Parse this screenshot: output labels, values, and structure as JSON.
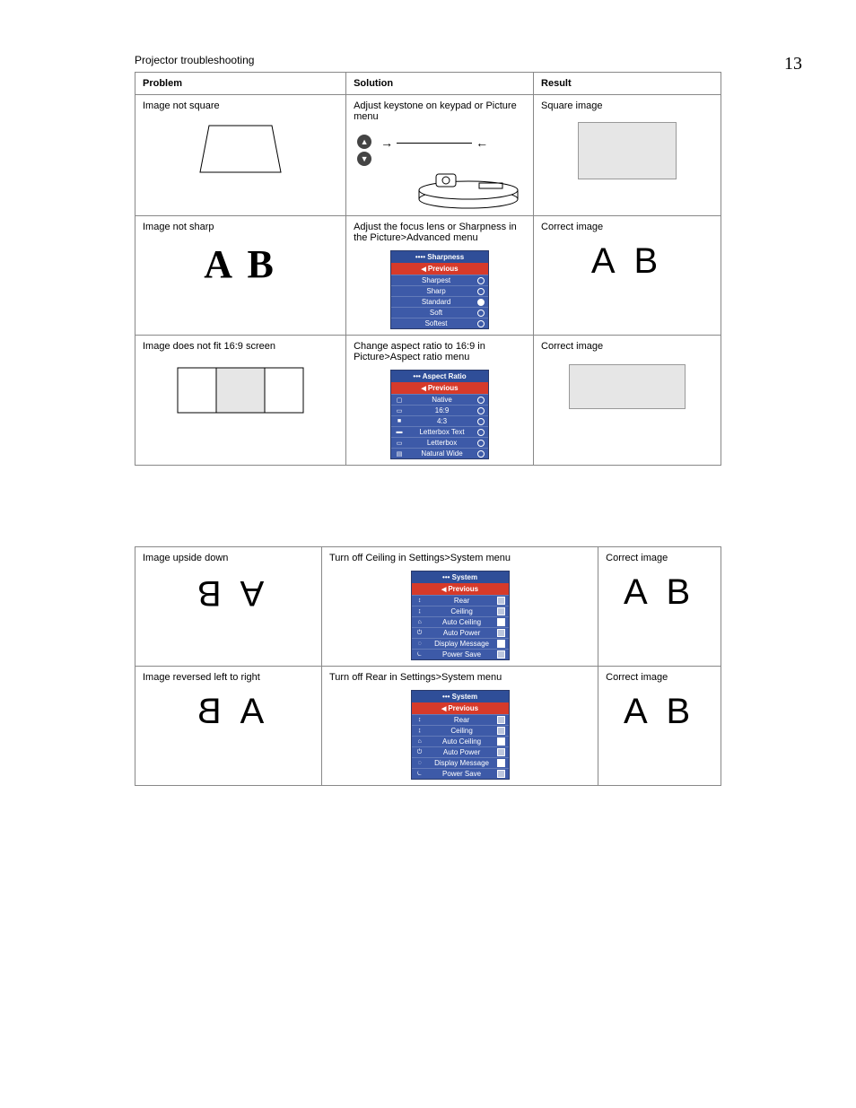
{
  "page_number": "13",
  "section_title": "Projector troubleshooting",
  "headers": {
    "problem": "Problem",
    "solution": "Solution",
    "result": "Result"
  },
  "colors": {
    "border": "#888888",
    "osd_bg": "#3d5aa8",
    "osd_title_bg": "#2f4e98",
    "osd_prev_bg": "#d63a2a",
    "result_box_fill": "#e6e6e6",
    "text": "#000000"
  },
  "rows": [
    {
      "problem": "Image not square",
      "solution": "Adjust keystone on keypad or Picture menu",
      "result": "Square image",
      "art": {
        "problem_type": "trapezoid",
        "solution_type": "projector",
        "result_type": "grey_box"
      }
    },
    {
      "problem": "Image not sharp",
      "solution": "Adjust the focus lens or Sharpness in the Picture>Advanced menu",
      "result": "Correct image",
      "art": {
        "problem_type": "ab_bold",
        "solution_type": "osd",
        "result_type": "ab_thin"
      },
      "osd": {
        "title": "•••• Sharpness",
        "previous": "Previous",
        "items": [
          {
            "label": "Sharpest",
            "control": "radio",
            "checked": false
          },
          {
            "label": "Sharp",
            "control": "radio",
            "checked": false
          },
          {
            "label": "Standard",
            "control": "radio",
            "checked": true
          },
          {
            "label": "Soft",
            "control": "radio",
            "checked": false
          },
          {
            "label": "Softest",
            "control": "radio",
            "checked": false
          }
        ]
      }
    },
    {
      "problem": "Image does not fit 16:9 screen",
      "solution": "Change aspect ratio to 16:9 in Picture>Aspect ratio menu",
      "result": "Correct image",
      "art": {
        "problem_type": "square_in_wide",
        "solution_type": "osd",
        "result_type": "wide_box"
      },
      "osd": {
        "title": "••• Aspect Ratio",
        "previous": "Previous",
        "items": [
          {
            "icon": "▢",
            "label": "Native",
            "control": "radio",
            "checked": false
          },
          {
            "icon": "▭",
            "label": "16:9",
            "control": "radio",
            "checked": false
          },
          {
            "icon": "■",
            "label": "4:3",
            "control": "radio",
            "checked": false
          },
          {
            "icon": "▬",
            "label": "Letterbox Text",
            "control": "radio",
            "checked": false
          },
          {
            "icon": "▭",
            "label": "Letterbox",
            "control": "radio",
            "checked": false
          },
          {
            "icon": "▤",
            "label": "Natural Wide",
            "control": "radio",
            "checked": false
          }
        ]
      }
    },
    {
      "problem": "Image upside down",
      "solution": "Turn off Ceiling in Settings>System menu",
      "result": "Correct image",
      "art": {
        "problem_type": "ab_upside",
        "solution_type": "osd",
        "result_type": "ab_thin"
      },
      "osd": {
        "title": "••• System",
        "previous": "Previous",
        "items": [
          {
            "icon": "↕",
            "label": "Rear",
            "control": "check",
            "checked": false
          },
          {
            "icon": "↨",
            "label": "Ceiling",
            "control": "check",
            "checked": false
          },
          {
            "icon": "⌂",
            "label": "Auto Ceiling",
            "control": "check",
            "checked": true
          },
          {
            "icon": "⏻",
            "label": "Auto Power",
            "control": "check",
            "checked": false
          },
          {
            "icon": "◌",
            "label": "Display Message",
            "control": "check",
            "checked": true
          },
          {
            "icon": "⏾",
            "label": "Power Save",
            "control": "check",
            "checked": false
          }
        ]
      }
    },
    {
      "problem": "Image reversed left to right",
      "solution": "Turn off Rear in Settings>System menu",
      "result": "Correct image",
      "art": {
        "problem_type": "ab_mirror",
        "solution_type": "osd",
        "result_type": "ab_thin"
      },
      "osd": {
        "title": "••• System",
        "previous": "Previous",
        "items": [
          {
            "icon": "↕",
            "label": "Rear",
            "control": "check",
            "checked": false
          },
          {
            "icon": "↨",
            "label": "Ceiling",
            "control": "check",
            "checked": false
          },
          {
            "icon": "⌂",
            "label": "Auto Ceiling",
            "control": "check",
            "checked": true
          },
          {
            "icon": "⏻",
            "label": "Auto Power",
            "control": "check",
            "checked": false
          },
          {
            "icon": "◌",
            "label": "Display Message",
            "control": "check",
            "checked": true
          },
          {
            "icon": "⏾",
            "label": "Power Save",
            "control": "check",
            "checked": false
          }
        ]
      }
    }
  ]
}
